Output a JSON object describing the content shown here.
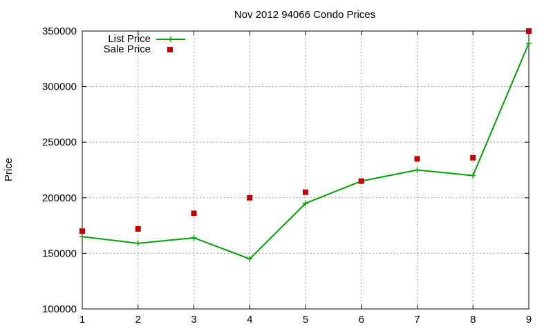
{
  "chart_data": {
    "type": "line",
    "title": "Nov 2012 94066 Condo Prices",
    "xlabel": "",
    "ylabel": "Price",
    "xlim": [
      1,
      9
    ],
    "ylim": [
      100000,
      350000
    ],
    "x_ticks": [
      1,
      2,
      3,
      4,
      5,
      6,
      7,
      8,
      9
    ],
    "y_ticks": [
      100000,
      150000,
      200000,
      250000,
      300000,
      350000
    ],
    "grid": true,
    "legend_position": "top-left",
    "x": [
      1,
      2,
      3,
      4,
      5,
      6,
      7,
      8,
      9
    ],
    "series": [
      {
        "name": "List Price",
        "style": "line-with-plus-markers",
        "color": "#00a000",
        "values": [
          165000,
          159000,
          164000,
          145000,
          195000,
          215000,
          225000,
          220000,
          339000
        ]
      },
      {
        "name": "Sale Price",
        "style": "square-markers",
        "color": "#c00000",
        "values": [
          170000,
          172000,
          186000,
          200000,
          205000,
          215000,
          235000,
          236000,
          350000
        ]
      }
    ]
  }
}
